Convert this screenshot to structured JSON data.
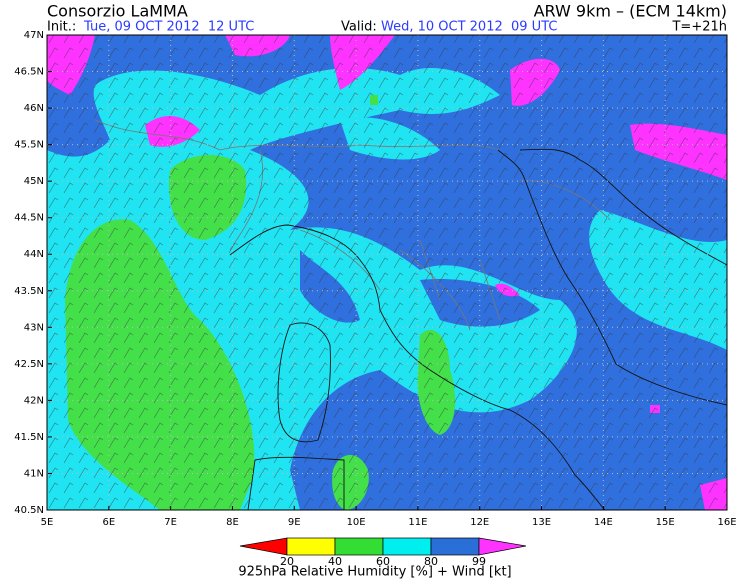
{
  "header": {
    "title": "Consorzio LaMMA",
    "model": "ARW 9km – (ECM 14km)",
    "init_label": "Init.:",
    "init": "Tue, 09 OCT 2012  12 UTC",
    "valid_label": "Valid:",
    "valid": "Wed, 10 OCT 2012  09 UTC",
    "lead": "T=+21h"
  },
  "map": {
    "lat_labels": [
      "47N",
      "46.5N",
      "46N",
      "45.5N",
      "45N",
      "44.5N",
      "44N",
      "43.5N",
      "43N",
      "42.5N",
      "42N",
      "41.5N",
      "41N",
      "40.5N"
    ],
    "lon_labels": [
      "5E",
      "6E",
      "7E",
      "8E",
      "9E",
      "10E",
      "11E",
      "12E",
      "13E",
      "14E",
      "15E",
      "16E"
    ]
  },
  "legend": {
    "labels": [
      "20",
      "40",
      "60",
      "80",
      "99"
    ],
    "title": "925hPa Relative Humidity [%] + Wind [kt]"
  }
}
